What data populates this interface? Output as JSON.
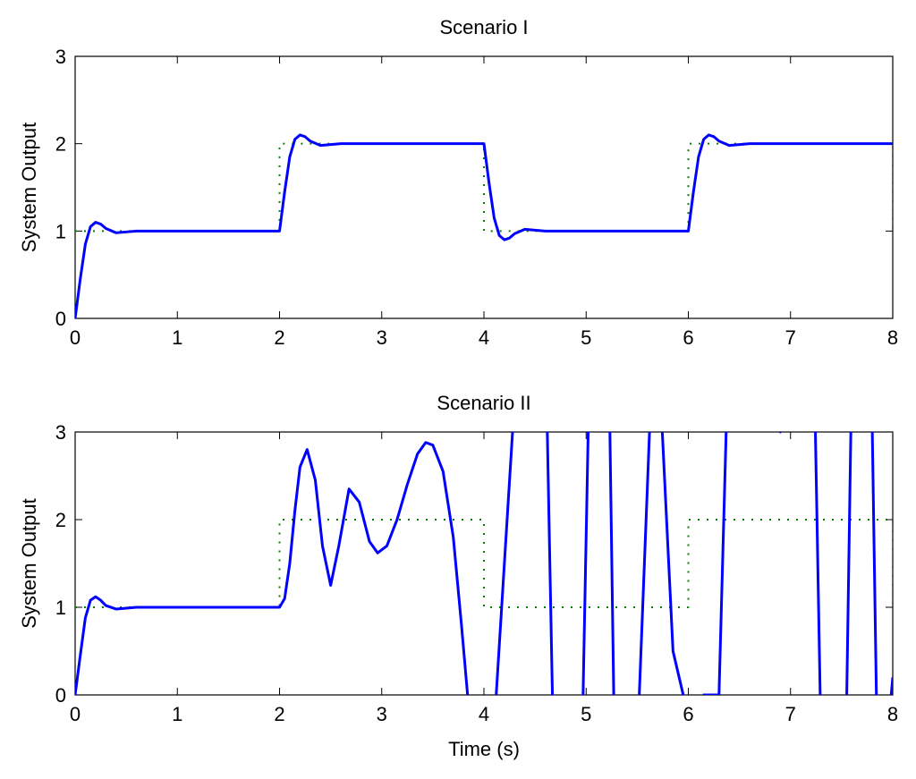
{
  "chart_data": [
    {
      "type": "line",
      "title": "Scenario I",
      "xlabel": "",
      "ylabel": "System Output",
      "xlim": [
        0,
        8
      ],
      "ylim": [
        0,
        3
      ],
      "xticks": [
        "0",
        "1",
        "2",
        "3",
        "4",
        "5",
        "6",
        "7",
        "8"
      ],
      "yticks": [
        "0",
        "1",
        "2",
        "3"
      ],
      "grid": false,
      "series": [
        {
          "role": "reference",
          "style": "dotted",
          "color": "#008000",
          "x": [
            0,
            2,
            2,
            4,
            4,
            6,
            6,
            8,
            8
          ],
          "y": [
            1,
            1,
            2,
            2,
            1,
            1,
            2,
            2,
            1
          ]
        },
        {
          "role": "output",
          "style": "solid",
          "color": "#0000ff",
          "x": [
            0,
            0.05,
            0.1,
            0.15,
            0.2,
            0.25,
            0.3,
            0.4,
            0.5,
            0.6,
            2.0,
            2.05,
            2.1,
            2.15,
            2.2,
            2.25,
            2.3,
            2.4,
            2.5,
            2.6,
            4.0,
            4.05,
            4.1,
            4.15,
            4.2,
            4.25,
            4.3,
            4.4,
            4.5,
            4.6,
            6.0,
            6.05,
            6.1,
            6.15,
            6.2,
            6.25,
            6.3,
            6.4,
            6.5,
            6.6,
            8.0
          ],
          "y": [
            0,
            0.45,
            0.85,
            1.05,
            1.1,
            1.08,
            1.03,
            0.98,
            0.99,
            1.0,
            1.0,
            1.45,
            1.85,
            2.05,
            2.1,
            2.08,
            2.03,
            1.98,
            1.99,
            2.0,
            2.0,
            1.55,
            1.15,
            0.95,
            0.9,
            0.92,
            0.97,
            1.02,
            1.01,
            1.0,
            1.0,
            1.45,
            1.85,
            2.05,
            2.1,
            2.08,
            2.03,
            1.98,
            1.99,
            2.0,
            2.0
          ]
        }
      ]
    },
    {
      "type": "line",
      "title": "Scenario II",
      "xlabel": "Time (s)",
      "ylabel": "System Output",
      "xlim": [
        0,
        8
      ],
      "ylim": [
        0,
        3
      ],
      "xticks": [
        "0",
        "1",
        "2",
        "3",
        "4",
        "5",
        "6",
        "7",
        "8"
      ],
      "yticks": [
        "0",
        "1",
        "2",
        "3"
      ],
      "grid": false,
      "series": [
        {
          "role": "reference",
          "style": "dotted",
          "color": "#008000",
          "x": [
            0,
            2,
            2,
            4,
            4,
            6,
            6,
            8,
            8
          ],
          "y": [
            1,
            1,
            2,
            2,
            1,
            1,
            2,
            2,
            1
          ]
        },
        {
          "role": "output",
          "style": "solid",
          "color": "#0000ff",
          "x": [
            0,
            0.05,
            0.1,
            0.15,
            0.2,
            0.25,
            0.3,
            0.4,
            0.5,
            0.6,
            2.0,
            2.05,
            2.1,
            2.15,
            2.2,
            2.27,
            2.35,
            2.42,
            2.5,
            2.58,
            2.68,
            2.78,
            2.88,
            2.96,
            3.05,
            3.15,
            3.25,
            3.35,
            3.43,
            3.5,
            3.6,
            3.7,
            3.78,
            3.84,
            3.92,
            4.0,
            4.12,
            4.2,
            4.28,
            4.35,
            4.45,
            4.55,
            4.62,
            4.67,
            4.72,
            4.8,
            4.9,
            4.97,
            5.02,
            5.07,
            5.15,
            5.23,
            5.27,
            5.31,
            5.4,
            5.52,
            5.62,
            5.66,
            5.72,
            5.85,
            5.95,
            5.99,
            6.03,
            6.15,
            6.3,
            6.37,
            6.43,
            6.6,
            6.8,
            6.9,
            6.96,
            7.1,
            7.24,
            7.29,
            7.34,
            7.45,
            7.55,
            7.59,
            7.63,
            7.72,
            7.8,
            7.84,
            7.88,
            7.94,
            8.0
          ],
          "y": [
            0,
            0.45,
            0.88,
            1.08,
            1.12,
            1.08,
            1.02,
            0.98,
            0.99,
            1.0,
            1.0,
            1.1,
            1.5,
            2.1,
            2.6,
            2.8,
            2.45,
            1.7,
            1.25,
            1.7,
            2.35,
            2.2,
            1.75,
            1.62,
            1.7,
            2.0,
            2.4,
            2.75,
            2.88,
            2.85,
            2.55,
            1.8,
            0.8,
            0,
            -0.6,
            -0.6,
            0,
            1.5,
            3,
            4.5,
            4.5,
            3.5,
            3,
            0,
            -0.6,
            -0.6,
            -0.1,
            0,
            3,
            3.6,
            3.6,
            3.2,
            0,
            -0.6,
            -0.6,
            0,
            3,
            3.6,
            3.6,
            0.5,
            0,
            -0.6,
            -0.6,
            0,
            0,
            3,
            3.6,
            3.6,
            3.4,
            3,
            3.6,
            3.6,
            3.2,
            0,
            -0.6,
            -0.6,
            0,
            3,
            3.6,
            3.6,
            3,
            0,
            -0.6,
            -0.6,
            0.2
          ]
        }
      ]
    }
  ]
}
